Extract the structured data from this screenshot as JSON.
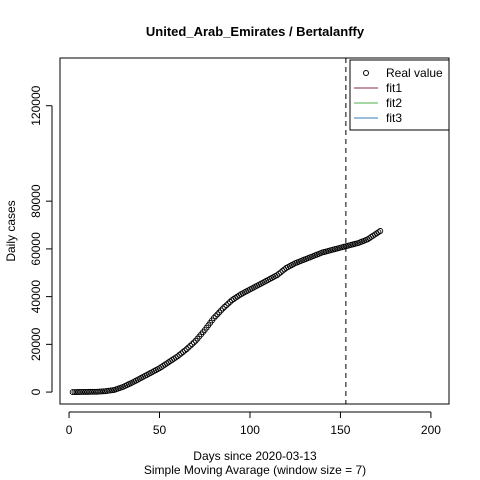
{
  "chart_data": {
    "type": "scatter",
    "title": "United_Arab_Emirates / Bertalanffy",
    "xlabel": "Days since 2020-03-13",
    "subtitle": "Simple Moving Avarage (window size = 7)",
    "ylabel": "Daily cases",
    "xlim": [
      -5,
      210
    ],
    "ylim": [
      -5000,
      140000
    ],
    "x_ticks": [
      0,
      50,
      100,
      150,
      200
    ],
    "y_ticks": [
      0,
      20000,
      40000,
      60000,
      80000,
      120000
    ],
    "x_tick_labels": [
      "0",
      "50",
      "100",
      "150",
      "200"
    ],
    "y_tick_labels": [
      "0",
      "20000",
      "40000",
      "60000",
      "80000",
      "120000"
    ],
    "vline_x": 153,
    "legend": {
      "position": "top-right",
      "entries": [
        {
          "label": "Real value",
          "kind": "point",
          "color": "#000000"
        },
        {
          "label": "fit1",
          "kind": "line",
          "color": "#8B2252"
        },
        {
          "label": "fit2",
          "kind": "line",
          "color": "#4DAF4A"
        },
        {
          "label": "fit3",
          "kind": "line",
          "color": "#377EB8"
        }
      ]
    },
    "series": [
      {
        "name": "Real value",
        "anchors": [
          [
            2,
            0
          ],
          [
            15,
            120
          ],
          [
            20,
            350
          ],
          [
            25,
            900
          ],
          [
            30,
            2200
          ],
          [
            35,
            4000
          ],
          [
            40,
            6000
          ],
          [
            45,
            8000
          ],
          [
            50,
            10000
          ],
          [
            55,
            12500
          ],
          [
            60,
            15000
          ],
          [
            65,
            18000
          ],
          [
            70,
            21500
          ],
          [
            75,
            26000
          ],
          [
            80,
            31000
          ],
          [
            85,
            35000
          ],
          [
            90,
            38500
          ],
          [
            95,
            41000
          ],
          [
            100,
            43000
          ],
          [
            105,
            45000
          ],
          [
            110,
            47000
          ],
          [
            115,
            49000
          ],
          [
            120,
            52000
          ],
          [
            125,
            54000
          ],
          [
            130,
            55500
          ],
          [
            135,
            57000
          ],
          [
            140,
            58500
          ],
          [
            145,
            59500
          ],
          [
            150,
            60500
          ],
          [
            155,
            61500
          ],
          [
            160,
            62500
          ],
          [
            165,
            64000
          ],
          [
            170,
            66500
          ],
          [
            172,
            67500
          ]
        ]
      }
    ]
  }
}
